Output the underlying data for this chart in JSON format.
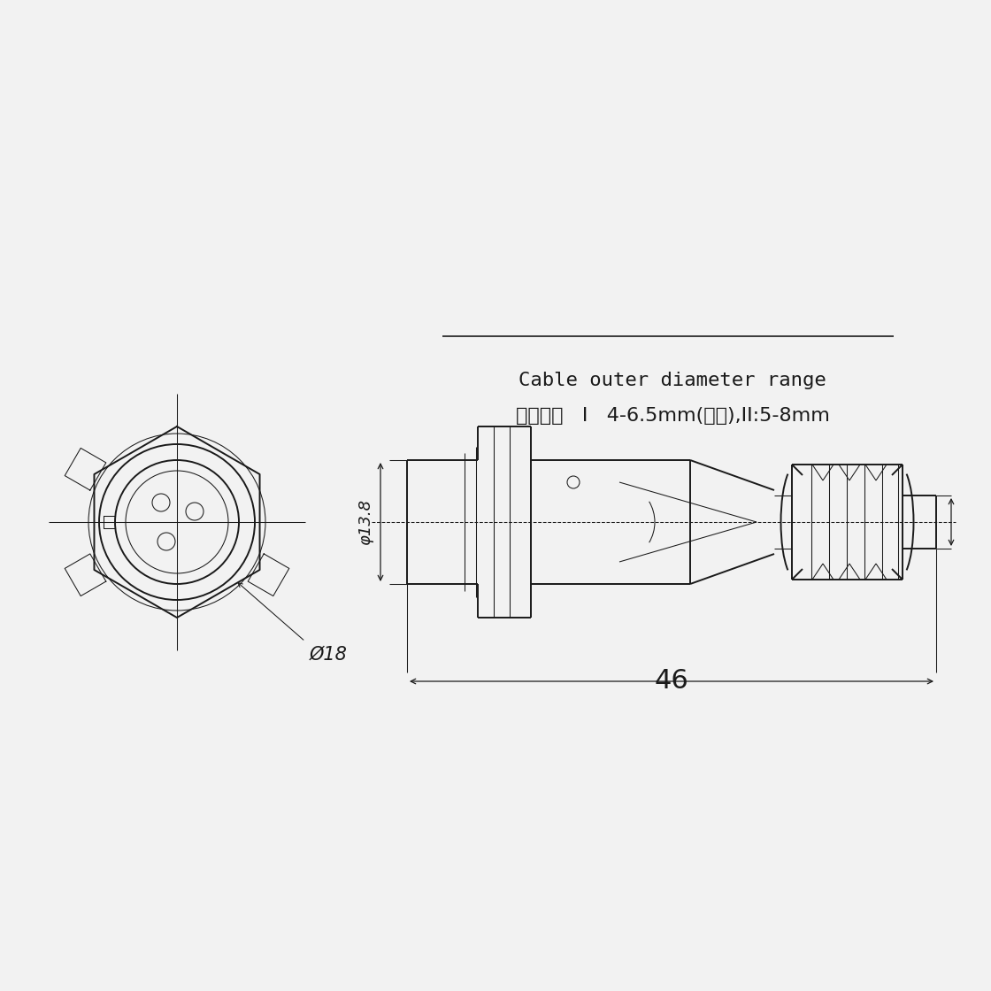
{
  "bg_color": "#f2f2f2",
  "line_color": "#1a1a1a",
  "text_color": "#1a1a1a",
  "lw_main": 1.4,
  "lw_thin": 0.75,
  "lw_dim": 0.9,
  "dim46": "46",
  "dim13_8": "φ13.8",
  "dim18": "Ø18",
  "text_line1": "电缆直径   I   4-6.5mm(不标),II:5-8mm",
  "text_line2": "Cable outer diameter range"
}
